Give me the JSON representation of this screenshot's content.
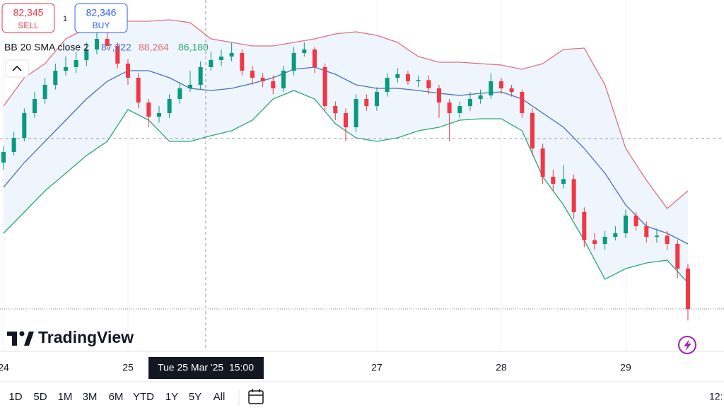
{
  "chart_data": {
    "type": "candlestick",
    "x": [
      0,
      2,
      4,
      6,
      8,
      10,
      12,
      14,
      16,
      18,
      20,
      22,
      24,
      26,
      28,
      30,
      32,
      34,
      36,
      38,
      40,
      42,
      44,
      46,
      48,
      50,
      52,
      54,
      56,
      58,
      60,
      62,
      64,
      66,
      68,
      70,
      72,
      74,
      76,
      78,
      80,
      82,
      84,
      86,
      88,
      90,
      92,
      94,
      96,
      98,
      100,
      102,
      104,
      106,
      108,
      110,
      112,
      114,
      116,
      118,
      120,
      122,
      124,
      126,
      128,
      130,
      132
    ],
    "open": [
      85450,
      85675,
      85975,
      86500,
      86800,
      87100,
      87400,
      87475,
      87625,
      87850,
      88075,
      87925,
      87550,
      87250,
      86725,
      86425,
      86500,
      86800,
      87025,
      87100,
      87475,
      87625,
      87700,
      87775,
      87400,
      87250,
      87175,
      87025,
      87400,
      87775,
      87850,
      87475,
      86650,
      86500,
      86200,
      86800,
      86650,
      86950,
      87250,
      87325,
      87175,
      87200,
      87025,
      86725,
      86500,
      86650,
      86800,
      86875,
      87175,
      87025,
      86950,
      86500,
      85750,
      85150,
      85000,
      85100,
      84400,
      83800,
      83725,
      83875,
      83950,
      84325,
      84100,
      83875,
      83900,
      83725,
      83200
    ],
    "high": [
      85800,
      86100,
      86600,
      86950,
      87250,
      87550,
      87700,
      87800,
      88000,
      88250,
      88200,
      88000,
      87650,
      87350,
      86800,
      86650,
      86900,
      87150,
      87400,
      87600,
      87800,
      87850,
      88000,
      87850,
      87500,
      87350,
      87300,
      87500,
      87900,
      88000,
      87900,
      87550,
      86750,
      86600,
      86900,
      86900,
      87050,
      87350,
      87450,
      87400,
      87300,
      87300,
      87100,
      86800,
      86750,
      86950,
      87000,
      87350,
      87250,
      87100,
      87000,
      86600,
      85850,
      85300,
      85400,
      85200,
      84500,
      83950,
      84000,
      84100,
      84450,
      84400,
      84200,
      84050,
      84000,
      83800,
      83300
    ],
    "low": [
      85300,
      85600,
      85900,
      86400,
      86700,
      87000,
      87300,
      87350,
      87500,
      87750,
      87850,
      87450,
      87100,
      86600,
      86200,
      86300,
      86400,
      86700,
      86950,
      87000,
      87400,
      87500,
      87600,
      87300,
      87100,
      87050,
      86900,
      86950,
      87300,
      87700,
      87350,
      86550,
      86350,
      85900,
      86100,
      86550,
      86550,
      86850,
      87150,
      87100,
      87050,
      86900,
      86400,
      85900,
      86400,
      86550,
      86700,
      86800,
      86900,
      86850,
      86400,
      85600,
      85000,
      84850,
      84900,
      84250,
      83650,
      83600,
      83600,
      83800,
      83850,
      84000,
      83750,
      83750,
      83600,
      83000,
      82100
    ],
    "close": [
      85675,
      85975,
      86500,
      86800,
      87100,
      87400,
      87475,
      87625,
      87850,
      88075,
      87925,
      87550,
      87250,
      86725,
      86425,
      86500,
      86800,
      87025,
      87100,
      87475,
      87625,
      87700,
      87775,
      87400,
      87250,
      87175,
      87025,
      87400,
      87775,
      87850,
      87475,
      86650,
      86500,
      86200,
      86800,
      86650,
      86950,
      87250,
      87325,
      87175,
      87200,
      87025,
      86725,
      86500,
      86650,
      86800,
      86875,
      87175,
      87025,
      86950,
      86500,
      85750,
      85150,
      85000,
      85100,
      84400,
      83800,
      83725,
      83875,
      83950,
      84325,
      84100,
      83875,
      83900,
      83725,
      83200,
      82345
    ],
    "up_color": "#089981",
    "down_color": "#f23645",
    "xlim": [
      -0.68,
      138.96
    ],
    "ylim": [
      81400,
      88900
    ],
    "xticks": [
      {
        "value": 0,
        "label": "24"
      },
      {
        "value": 24,
        "label": "25"
      },
      {
        "value": 72,
        "label": "27"
      },
      {
        "value": 96,
        "label": "28"
      },
      {
        "value": 120,
        "label": "29"
      }
    ],
    "bands": {
      "x": [
        0,
        4,
        8,
        12,
        16,
        20,
        24,
        28,
        32,
        36,
        40,
        44,
        48,
        52,
        56,
        60,
        64,
        68,
        72,
        76,
        80,
        84,
        88,
        92,
        96,
        100,
        104,
        108,
        112,
        116,
        120,
        124,
        128,
        132
      ],
      "upper": [
        86650,
        87250,
        87550,
        88075,
        88300,
        88450,
        88450,
        88450,
        88480,
        88420,
        88075,
        88000,
        87925,
        87925,
        88000,
        88075,
        88180,
        88225,
        88150,
        88000,
        87700,
        87580,
        87580,
        87550,
        87520,
        87430,
        87550,
        87850,
        87880,
        87100,
        85750,
        85075,
        84475,
        84850
      ],
      "middle": [
        84925,
        85450,
        85900,
        86350,
        86800,
        87175,
        87400,
        87400,
        87250,
        87025,
        86980,
        87025,
        87130,
        87250,
        87430,
        87475,
        87325,
        87100,
        87025,
        87025,
        86980,
        86920,
        86875,
        86920,
        86950,
        86800,
        86500,
        86200,
        85750,
        85225,
        84550,
        84100,
        83950,
        83725
      ],
      "lower": [
        83950,
        84400,
        84850,
        85225,
        85600,
        85900,
        86575,
        86350,
        85900,
        85900,
        86020,
        86125,
        86350,
        86800,
        86980,
        86800,
        86275,
        85975,
        85900,
        85975,
        86125,
        86200,
        86350,
        86380,
        86380,
        86125,
        85150,
        84550,
        83800,
        82975,
        83200,
        83320,
        83380,
        82900
      ],
      "upper_color": "#e0707c",
      "middle_color": "#4a6fc4",
      "lower_color": "#2ea673",
      "fill": "#eef5fd"
    },
    "crosshair": {
      "x": 39,
      "y": 85960,
      "label": "Tue 25 Mar '25  15:00"
    }
  },
  "header": {
    "sell_price": "82,345",
    "sell": "SELL",
    "spread": "1",
    "buy_price": "82,346",
    "buy": "BUY",
    "indicator": "BB 20 SMA close 2",
    "middle_value": "87,222",
    "upper_value": "88,264",
    "lower_value": "86,180"
  },
  "logo": "TradingView",
  "toolbar": {
    "ranges": [
      "1D",
      "5D",
      "1M",
      "3M",
      "6M",
      "YTD",
      "1Y",
      "5Y",
      "All"
    ],
    "time": "12:"
  }
}
